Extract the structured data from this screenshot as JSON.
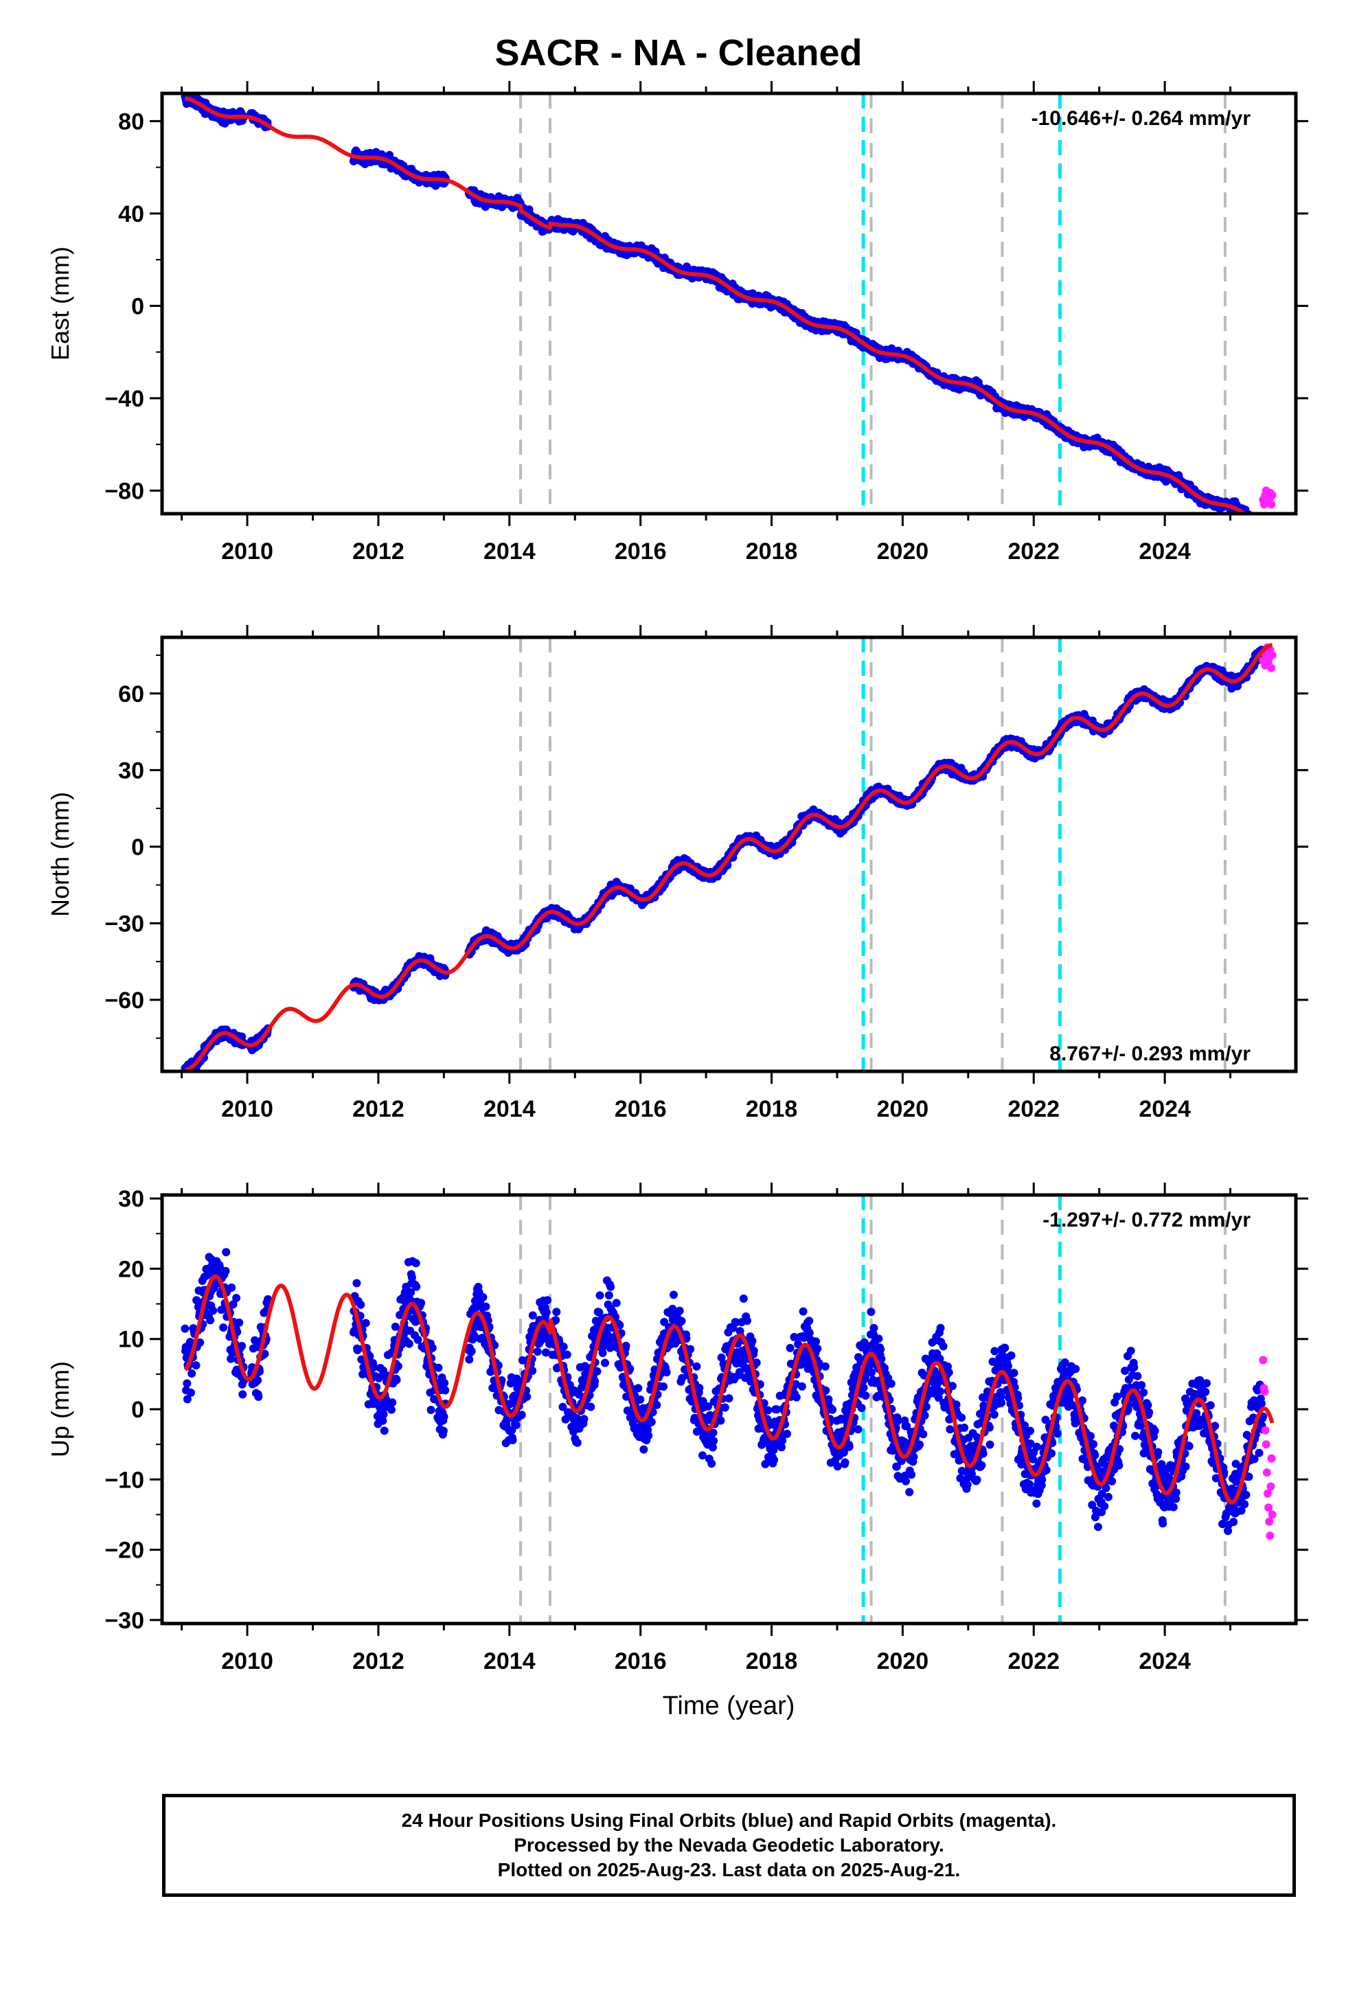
{
  "title": "SACR  - NA - Cleaned",
  "chart_data": {
    "type": "scatter",
    "xlabel": "Time (year)",
    "xlim": [
      2008.7,
      2026.0
    ],
    "x_ticks": [
      2010,
      2012,
      2014,
      2016,
      2018,
      2020,
      2022,
      2024
    ],
    "x_tick_labels": [
      "2010",
      "2012",
      "2014",
      "2016",
      "2018",
      "2020",
      "2022",
      "2024"
    ],
    "data_start": 2009.05,
    "data_end": 2025.64,
    "rapid_start": 2025.5,
    "gap_intervals": [
      [
        2009.95,
        2010.05
      ],
      [
        2010.32,
        2011.62
      ],
      [
        2013.03,
        2013.38
      ]
    ],
    "offsets_gray": [
      2014.17,
      2014.62,
      2019.52,
      2021.52,
      2024.92
    ],
    "offsets_cyan": [
      2019.4,
      2022.4
    ],
    "series_colors": {
      "final": "#0000ee",
      "rapid": "#ff22ff",
      "model": "#ee1111",
      "offset_gray": "#bbbbbb",
      "offset_cyan": "#00e5ee"
    },
    "panels": [
      {
        "id": "east",
        "ylabel": "East (mm)",
        "ylim": [
          -90,
          92
        ],
        "y_ticks": [
          80,
          40,
          0,
          -40,
          -80
        ],
        "y_tick_labels": [
          "80",
          "40",
          "0",
          "−40",
          "−80"
        ],
        "rate_text": "-10.646+/- 0.264 mm/yr",
        "rate_position": "top-right",
        "model": {
          "base_year": 2009.05,
          "intercept": 88.5,
          "slope": -8.2,
          "quadratic": -0.18,
          "annual_amp": 1.5,
          "annual_phase": 1.3,
          "steps": [
            [
              2014.17,
              -2
            ],
            [
              2014.62,
              2
            ]
          ],
          "noise": 2.2
        },
        "rapid_values": [
          -84,
          -86,
          -82,
          -80,
          -85,
          -83,
          -84,
          -81,
          -86,
          -82
        ]
      },
      {
        "id": "north",
        "ylabel": "North (mm)",
        "ylim": [
          -88,
          82
        ],
        "y_ticks": [
          60,
          30,
          0,
          -30,
          -60
        ],
        "y_tick_labels": [
          "60",
          "30",
          "0",
          "−30",
          "−60"
        ],
        "rate_text": "8.767+/- 0.293 mm/yr",
        "rate_position": "bottom-right",
        "model": {
          "base_year": 2009.05,
          "intercept": -83,
          "slope": 9.5,
          "quadratic": 0,
          "annual_amp": 4.5,
          "annual_phase": 4.4,
          "steps": [],
          "noise": 1.9
        },
        "rapid_values": [
          73,
          76,
          71,
          75,
          78,
          72,
          74,
          77,
          70,
          75
        ]
      },
      {
        "id": "up",
        "ylabel": "Up (mm)",
        "ylim": [
          -30.5,
          30.5
        ],
        "y_ticks": [
          30,
          20,
          10,
          0,
          -10,
          -20,
          -30
        ],
        "y_tick_labels": [
          "30",
          "20",
          "10",
          "0",
          "−10",
          "−20",
          "−30"
        ],
        "rate_text": "-1.297+/- 0.772 mm/yr",
        "rate_position": "top-right",
        "model": {
          "base_year": 2009.05,
          "intercept": 12.5,
          "slope": -1.3,
          "quadratic": 0,
          "annual_amp": 7.0,
          "annual_phase": 4.9,
          "steps": [
            [
              2014.62,
              2
            ]
          ],
          "noise": 4.8
        },
        "rapid_values": [
          7,
          3,
          2.5,
          -3,
          -5,
          -9,
          -12,
          -14,
          -16,
          -18,
          -11,
          -7,
          -15
        ]
      }
    ]
  },
  "footer": {
    "line1": "24 Hour Positions Using Final Orbits (blue) and Rapid Orbits (magenta).",
    "line2": "Processed by the Nevada Geodetic Laboratory.",
    "line3": "Plotted on 2025-Aug-23. Last data on 2025-Aug-21."
  }
}
